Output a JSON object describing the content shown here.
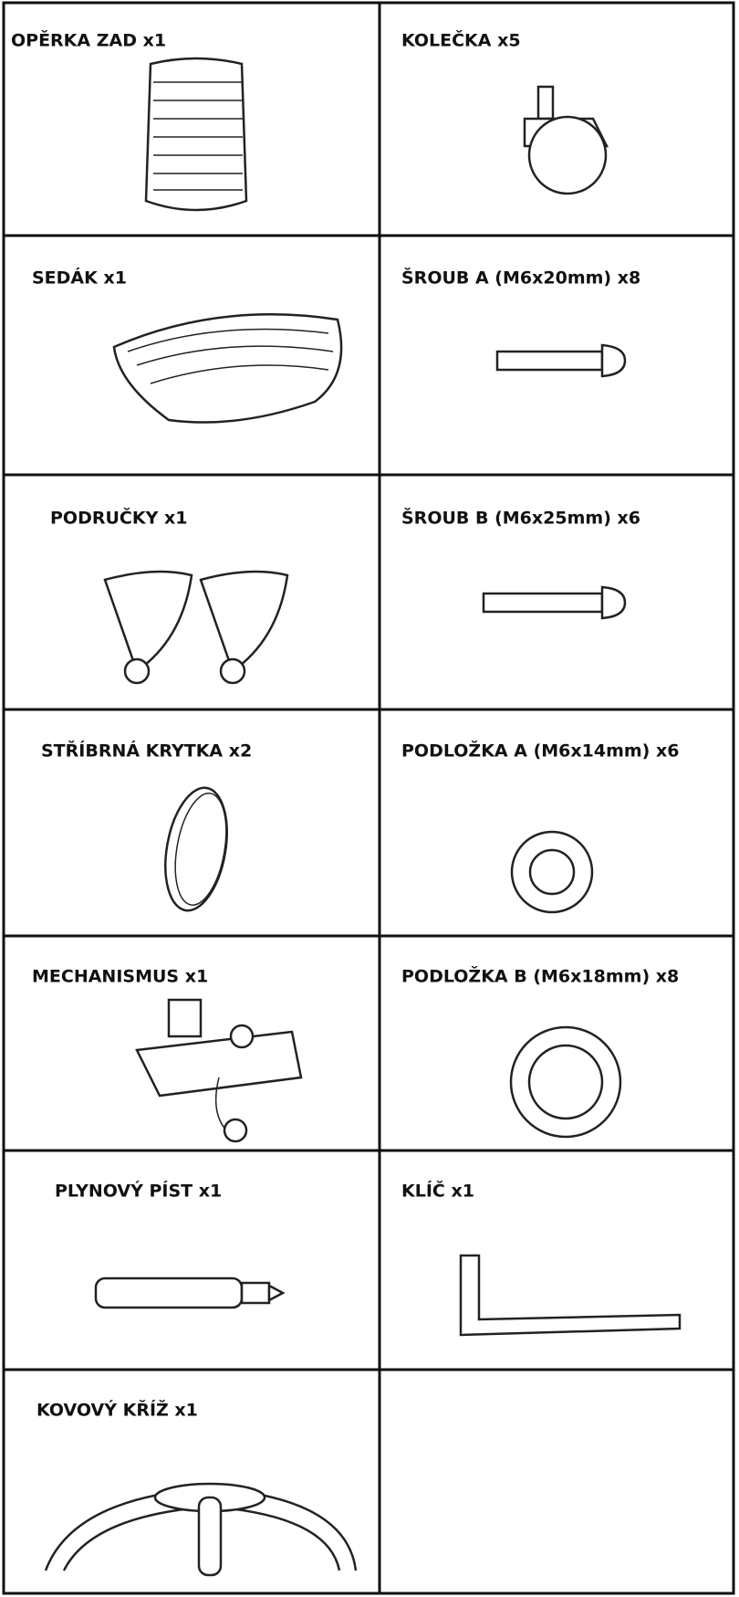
{
  "table": {
    "rows": [
      [
        "OPĚRKA ZAD x1",
        "KOLEČKA x5"
      ],
      [
        "SEDÁK x1",
        "ŠROUB A (M6x20mm) x8"
      ],
      [
        "PODRUČKY x1",
        "ŠROUB B (M6x25mm) x6"
      ],
      [
        "STŘÍBRNÁ KRYTKA x2",
        "PODLOŽKA A (M6x14mm) x6"
      ],
      [
        "MECHANISMUS x1",
        "PODLOŽKA B (M6x18mm) x8"
      ],
      [
        "PLYNOVÝ PÍST x1",
        "KLÍČ x1"
      ],
      [
        "KOVOVÝ KŘÍŽ x1"
      ]
    ]
  }
}
